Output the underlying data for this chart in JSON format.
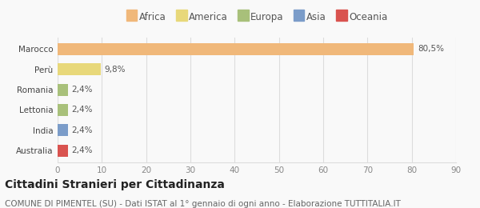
{
  "categories": [
    "Australia",
    "India",
    "Lettonia",
    "Romania",
    "Perù",
    "Marocco"
  ],
  "values": [
    2.4,
    2.4,
    2.4,
    2.4,
    9.8,
    80.5
  ],
  "labels": [
    "2,4%",
    "2,4%",
    "2,4%",
    "2,4%",
    "9,8%",
    "80,5%"
  ],
  "colors": [
    "#d9534f",
    "#7b9cc9",
    "#a8c07a",
    "#a8c07a",
    "#e8d87a",
    "#f0b87a"
  ],
  "legend_entries": [
    {
      "label": "Africa",
      "color": "#f0b87a"
    },
    {
      "label": "America",
      "color": "#e8d87a"
    },
    {
      "label": "Europa",
      "color": "#a8c07a"
    },
    {
      "label": "Asia",
      "color": "#7b9cc9"
    },
    {
      "label": "Oceania",
      "color": "#d9534f"
    }
  ],
  "xlim": [
    0,
    90
  ],
  "xticks": [
    0,
    10,
    20,
    30,
    40,
    50,
    60,
    70,
    80,
    90
  ],
  "title": "Cittadini Stranieri per Cittadinanza",
  "subtitle": "COMUNE DI PIMENTEL (SU) - Dati ISTAT al 1° gennaio di ogni anno - Elaborazione TUTTITALIA.IT",
  "title_fontsize": 10,
  "subtitle_fontsize": 7.5,
  "label_fontsize": 7.5,
  "tick_fontsize": 7.5,
  "legend_fontsize": 8.5,
  "bar_height": 0.6,
  "background_color": "#f9f9f9",
  "grid_color": "#dddddd"
}
